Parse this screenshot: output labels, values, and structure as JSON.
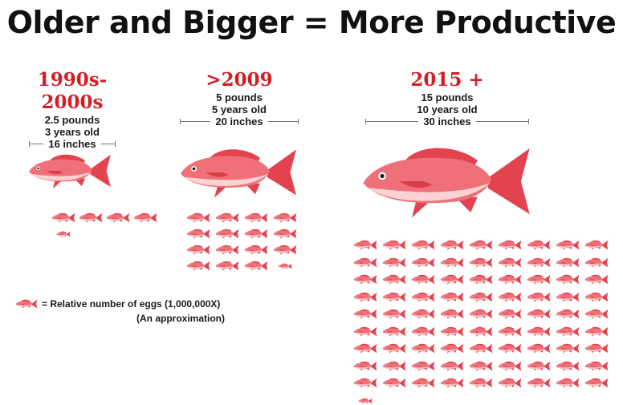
{
  "title": "Older and Bigger = More Productive",
  "eras": [
    {
      "heading": "1990s-2000s",
      "weight": "2.5 pounds",
      "age": "3 years old",
      "length": "16 inches",
      "relative_eggs": 4.5
    },
    {
      "heading": ">2009",
      "weight": "5 pounds",
      "age": "5 years old",
      "length": "20 inches",
      "relative_eggs": 15.5
    },
    {
      "heading": "2015 +",
      "weight": "15 pounds",
      "age": "10 years old",
      "length": "30 inches",
      "relative_eggs": 81.5
    }
  ],
  "legend": {
    "text": "= Relative number of  eggs (1,000,000X)",
    "note": "(An approximation)"
  },
  "colors": {
    "title": "#111111",
    "heading": "#d21f26",
    "fish_body": "#f0707a",
    "fish_light": "#fbd3d2",
    "fish_fin": "#e2434f"
  },
  "icons": {
    "unit": "small-fish-icon",
    "large": "red-snapper-icon"
  }
}
